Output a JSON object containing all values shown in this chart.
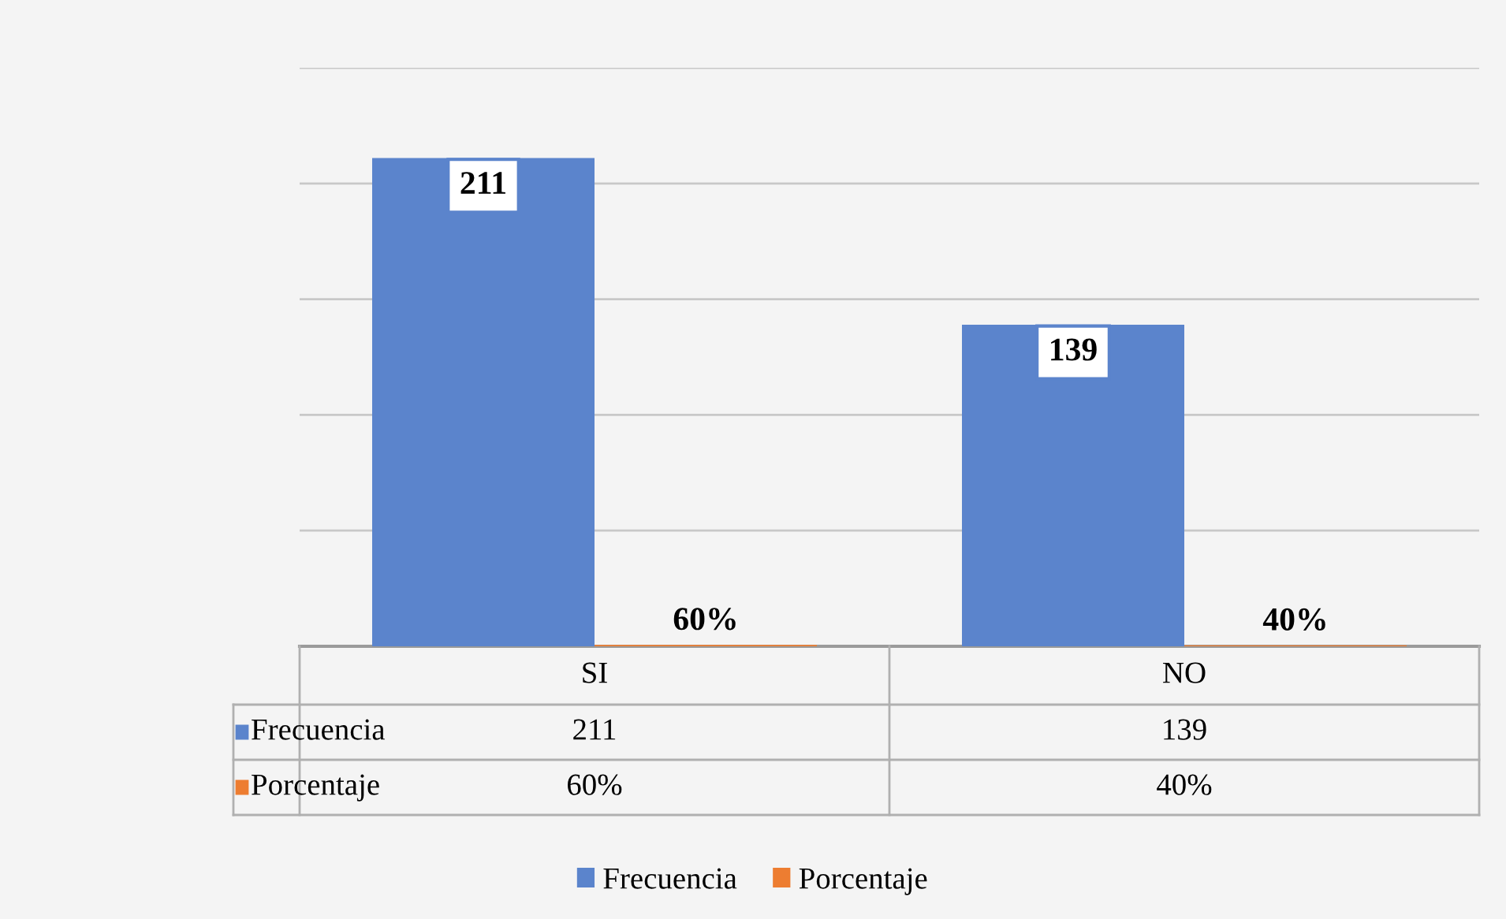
{
  "chart_data": {
    "type": "bar",
    "categories": [
      "SI",
      "NO"
    ],
    "series": [
      {
        "name": "Frecuencia",
        "color": "#5b84cc",
        "values": [
          211,
          139
        ],
        "value_labels": [
          "211",
          "139"
        ]
      },
      {
        "name": "Porcentaje",
        "color": "#ed7d31",
        "values": [
          0.6,
          0.4
        ],
        "value_labels": [
          "60%",
          "40%"
        ]
      }
    ],
    "ylim": [
      0,
      250
    ],
    "yticks": [
      {
        "value": 0,
        "label": null
      },
      {
        "value": 50,
        "label": null
      },
      {
        "value": 100,
        "label": null
      },
      {
        "value": 150,
        "label": null
      },
      {
        "value": 200,
        "label": null
      },
      {
        "value": 250,
        "label": null
      }
    ],
    "grid": "y",
    "legend": "bottom",
    "tick_labels": "x"
  }
}
